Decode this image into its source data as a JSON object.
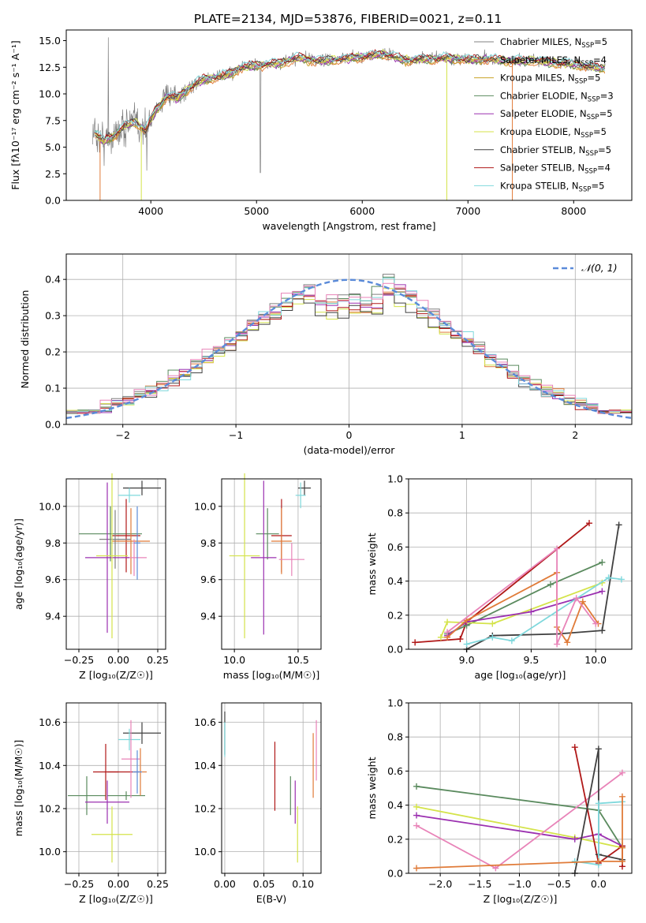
{
  "figure": {
    "title": "PLATE=2134, MJD=53876, FIBERID=0021, z=0.11"
  },
  "chart_data": [
    {
      "id": "spectrum",
      "type": "line",
      "xlabel": "wavelength [Angstrom, rest frame]",
      "ylabel": "Flux [fλ10⁻¹⁷ erg cm⁻² s⁻¹ A⁻¹]",
      "xlim": [
        3200,
        8550
      ],
      "ylim": [
        0,
        16
      ],
      "xticks": [
        "4000",
        "5000",
        "6000",
        "7000",
        "8000"
      ],
      "xtick_values": [
        4000,
        5000,
        6000,
        7000,
        8000
      ],
      "yticks": [
        "0.0",
        "2.5",
        "5.0",
        "7.5",
        "10.0",
        "12.5",
        "15.0"
      ],
      "ytick_values": [
        0,
        2.5,
        5,
        7.5,
        10,
        12.5,
        15
      ],
      "grid": false,
      "legend_position": "top-right",
      "legend": [
        {
          "label": "Chabrier MILES, N",
          "sub": "SSP",
          "suffix": "=5",
          "color": "#808080"
        },
        {
          "label": "Salpeter MILES, N",
          "sub": "SSP",
          "suffix": "=4",
          "color": "#e07b39"
        },
        {
          "label": "Kroupa MILES, N",
          "sub": "SSP",
          "suffix": "=5",
          "color": "#c9a227"
        },
        {
          "label": "Chabrier ELODIE, N",
          "sub": "SSP",
          "suffix": "=3",
          "color": "#5a8a5e"
        },
        {
          "label": "Salpeter ELODIE, N",
          "sub": "SSP",
          "suffix": "=5",
          "color": "#9b30b0"
        },
        {
          "label": "Kroupa ELODIE, N",
          "sub": "SSP",
          "suffix": "=5",
          "color": "#d4e34a"
        },
        {
          "label": "Chabrier STELIB, N",
          "sub": "SSP",
          "suffix": "=5",
          "color": "#404040"
        },
        {
          "label": "Salpeter STELIB, N",
          "sub": "SSP",
          "suffix": "=4",
          "color": "#b01818"
        },
        {
          "label": "Kroupa STELIB, N",
          "sub": "SSP",
          "suffix": "=5",
          "color": "#7fd8dc"
        }
      ],
      "data_envelope": {
        "x": [
          3450,
          3550,
          3650,
          3750,
          3850,
          3950,
          4050,
          4150,
          4250,
          4350,
          4500,
          4700,
          4850,
          5000,
          5200,
          5400,
          5600,
          5800,
          6000,
          6200,
          6400,
          6600,
          6800,
          7000,
          7200,
          7400,
          7600,
          7800,
          8000,
          8200,
          8300
        ],
        "y": [
          6.5,
          5.6,
          6.1,
          7.0,
          7.4,
          6.6,
          8.5,
          9.8,
          9.6,
          10.5,
          11.4,
          11.7,
          12.5,
          12.7,
          12.9,
          13.4,
          13.1,
          13.3,
          13.5,
          13.8,
          13.2,
          13.3,
          13.4,
          13.2,
          13.3,
          13.1,
          13.2,
          13.0,
          12.8,
          12.5,
          12.4
        ]
      }
    },
    {
      "id": "residuals",
      "type": "histogram",
      "xlabel": "(data-model)/error",
      "ylabel": "Normed distribution",
      "xlim": [
        -2.5,
        2.5
      ],
      "ylim": [
        0,
        0.47
      ],
      "xticks": [
        "−2",
        "−1",
        "0",
        "1",
        "2"
      ],
      "xtick_values": [
        -2,
        -1,
        0,
        1,
        2
      ],
      "yticks": [
        "0.0",
        "0.1",
        "0.2",
        "0.3",
        "0.4"
      ],
      "ytick_values": [
        0,
        0.1,
        0.2,
        0.3,
        0.4
      ],
      "grid": true,
      "legend_position": "top-right",
      "legend": [
        {
          "label": "𝒩(0, 1)",
          "color": "#5b8bd9",
          "style": "dashed"
        }
      ],
      "bin_width": 0.1,
      "reference_curve": "normal pdf, mean 0, sigma 1"
    },
    {
      "id": "age-vs-Z",
      "type": "errorbar",
      "xlabel": "Z [log₁₀(Z/Z☉)]",
      "ylabel": "age  [log₁₀(age/yr)]",
      "xlim": [
        -0.33,
        0.3
      ],
      "ylim": [
        9.22,
        10.15
      ],
      "xticks": [
        "−0.25",
        "0.00",
        "0.25"
      ],
      "xtick_values": [
        -0.25,
        0,
        0.25
      ],
      "yticks": [
        "9.4",
        "9.6",
        "9.8",
        "10.0"
      ],
      "ytick_values": [
        9.4,
        9.6,
        9.8,
        10.0
      ],
      "grid": true,
      "points": [
        {
          "x": 0.15,
          "y": 10.1,
          "xerr": 0.12,
          "yerr": 0.04,
          "color": "#404040"
        },
        {
          "x": 0.07,
          "y": 10.06,
          "xerr": 0.07,
          "yerr": 0.04,
          "color": "#7fd8dc"
        },
        {
          "x": -0.05,
          "y": 9.85,
          "xerr": 0.2,
          "yerr": 0.15,
          "color": "#5a8a5e"
        },
        {
          "x": 0.05,
          "y": 9.84,
          "xerr": 0.09,
          "yerr": 0.2,
          "color": "#b01818"
        },
        {
          "x": 0.08,
          "y": 9.81,
          "xerr": 0.12,
          "yerr": 0.18,
          "color": "#e07b39"
        },
        {
          "x": -0.02,
          "y": 9.82,
          "xerr": 0.1,
          "yerr": 0.16,
          "color": "#808080"
        },
        {
          "x": 0.1,
          "y": 9.72,
          "xerr": 0.08,
          "yerr": 0.1,
          "color": "#e883b8"
        },
        {
          "x": -0.07,
          "y": 9.72,
          "xerr": 0.14,
          "yerr": 0.41,
          "color": "#9b30b0"
        },
        {
          "x": -0.04,
          "y": 9.73,
          "xerr": 0.1,
          "yerr": 0.45,
          "color": "#d4e34a"
        },
        {
          "x": 0.12,
          "y": 9.8,
          "xerr": 0.02,
          "yerr": 0.2,
          "color": "#5b8bd9"
        }
      ]
    },
    {
      "id": "age-vs-mass",
      "type": "errorbar",
      "xlabel": "mass [log₁₀(M/M☉)]",
      "ylabel": "",
      "xlim": [
        9.9,
        10.68
      ],
      "ylim": [
        9.22,
        10.15
      ],
      "xticks": [
        "10.0",
        "10.5"
      ],
      "xtick_values": [
        10.0,
        10.5
      ],
      "yticks": [
        "9.4",
        "9.6",
        "9.8",
        "10.0"
      ],
      "ytick_values": [
        9.4,
        9.6,
        9.8,
        10.0
      ],
      "grid": true,
      "points": [
        {
          "x": 10.55,
          "y": 10.1,
          "xerr": 0.05,
          "yerr": 0.04,
          "color": "#404040"
        },
        {
          "x": 10.52,
          "y": 10.06,
          "xerr": 0.04,
          "yerr": 0.07,
          "color": "#7fd8dc"
        },
        {
          "x": 10.26,
          "y": 9.85,
          "xerr": 0.09,
          "yerr": 0.14,
          "color": "#5a8a5e"
        },
        {
          "x": 10.37,
          "y": 9.84,
          "xerr": 0.08,
          "yerr": 0.2,
          "color": "#b01818"
        },
        {
          "x": 10.37,
          "y": 9.81,
          "xerr": 0.08,
          "yerr": 0.18,
          "color": "#e07b39"
        },
        {
          "x": 10.45,
          "y": 9.71,
          "xerr": 0.1,
          "yerr": 0.09,
          "color": "#e883b8"
        },
        {
          "x": 10.23,
          "y": 9.72,
          "xerr": 0.1,
          "yerr": 0.42,
          "color": "#9b30b0"
        },
        {
          "x": 10.08,
          "y": 9.73,
          "xerr": 0.12,
          "yerr": 0.45,
          "color": "#d4e34a"
        }
      ]
    },
    {
      "id": "weight-vs-age",
      "type": "line",
      "xlabel": "age  [log₁₀(age/yr)]",
      "ylabel": "mass weight",
      "xlim": [
        8.55,
        10.28
      ],
      "ylim": [
        0,
        1
      ],
      "xticks": [
        "9.0",
        "9.5",
        "10.0"
      ],
      "xtick_values": [
        9.0,
        9.5,
        10.0
      ],
      "yticks": [
        "0.0",
        "0.2",
        "0.4",
        "0.6",
        "0.8",
        "1.0"
      ],
      "ytick_values": [
        0,
        0.2,
        0.4,
        0.6,
        0.8,
        1.0
      ],
      "grid": true,
      "series": [
        {
          "color": "#404040",
          "x": [
            9.0,
            9.2,
            9.7,
            10.05,
            10.18
          ],
          "y": [
            0.0,
            0.08,
            0.09,
            0.11,
            0.73
          ]
        },
        {
          "color": "#b01818",
          "x": [
            8.6,
            8.95,
            9.0,
            9.95
          ],
          "y": [
            0.04,
            0.06,
            0.16,
            0.74
          ]
        },
        {
          "color": "#5a8a5e",
          "x": [
            8.85,
            9.0,
            9.65,
            10.05
          ],
          "y": [
            0.09,
            0.14,
            0.38,
            0.51
          ]
        },
        {
          "color": "#d4e34a",
          "x": [
            8.8,
            8.85,
            9.2,
            10.05
          ],
          "y": [
            0.07,
            0.16,
            0.15,
            0.39
          ]
        },
        {
          "color": "#9b30b0",
          "x": [
            8.85,
            9.0,
            9.5,
            10.05
          ],
          "y": [
            0.08,
            0.16,
            0.22,
            0.34
          ]
        },
        {
          "color": "#7fd8dc",
          "x": [
            9.0,
            9.2,
            9.35,
            10.1,
            10.2
          ],
          "y": [
            0.03,
            0.07,
            0.05,
            0.42,
            0.41
          ]
        },
        {
          "color": "#e07b39",
          "x": [
            8.85,
            9.0,
            9.7,
            9.7,
            9.78,
            9.9,
            10.02
          ],
          "y": [
            0.07,
            0.17,
            0.45,
            0.13,
            0.04,
            0.28,
            0.15
          ]
        },
        {
          "color": "#e883b8",
          "x": [
            8.85,
            9.7,
            9.7,
            9.85,
            10.0
          ],
          "y": [
            0.1,
            0.59,
            0.03,
            0.3,
            0.15
          ]
        }
      ]
    },
    {
      "id": "mass-vs-Z",
      "type": "errorbar",
      "xlabel": "Z [log₁₀(Z/Z☉)]",
      "ylabel": "mass [log₁₀(M/M☉)]",
      "xlim": [
        -0.33,
        0.3
      ],
      "ylim": [
        9.9,
        10.69
      ],
      "xticks": [
        "−0.25",
        "0.00",
        "0.25"
      ],
      "xtick_values": [
        -0.25,
        0,
        0.25
      ],
      "yticks": [
        "10.0",
        "10.2",
        "10.4",
        "10.6"
      ],
      "ytick_values": [
        10.0,
        10.2,
        10.4,
        10.6
      ],
      "grid": true,
      "points": [
        {
          "x": 0.15,
          "y": 10.55,
          "xerr": 0.12,
          "yerr": 0.05,
          "color": "#404040"
        },
        {
          "x": 0.07,
          "y": 10.52,
          "xerr": 0.07,
          "yerr": 0.05,
          "color": "#7fd8dc"
        },
        {
          "x": -0.2,
          "y": 10.26,
          "xerr": 0.12,
          "yerr": 0.09,
          "color": "#5a8a5e"
        },
        {
          "x": 0.05,
          "y": 10.26,
          "xerr": 0.12,
          "yerr": 0.02,
          "color": "#5a8a5e"
        },
        {
          "x": -0.08,
          "y": 10.37,
          "xerr": 0.08,
          "yerr": 0.13,
          "color": "#b01818"
        },
        {
          "x": 0.03,
          "y": 10.37,
          "xerr": 0.1,
          "yerr": 0.0,
          "color": "#b01818"
        },
        {
          "x": 0.14,
          "y": 10.37,
          "xerr": 0.04,
          "yerr": 0.11,
          "color": "#e07b39"
        },
        {
          "x": 0.08,
          "y": 10.43,
          "xerr": 0.06,
          "yerr": 0.18,
          "color": "#e883b8"
        },
        {
          "x": -0.07,
          "y": 10.23,
          "xerr": 0.14,
          "yerr": 0.1,
          "color": "#9b30b0"
        },
        {
          "x": -0.04,
          "y": 10.08,
          "xerr": 0.13,
          "yerr": 0.13,
          "color": "#d4e34a"
        },
        {
          "x": 0.12,
          "y": 10.37,
          "xerr": 0.03,
          "yerr": 0.1,
          "color": "#5b8bd9"
        }
      ]
    },
    {
      "id": "mass-vs-ebv",
      "type": "errorbar",
      "xlabel": "E(B-V)",
      "ylabel": "",
      "xlim": [
        -0.004,
        0.123
      ],
      "ylim": [
        9.9,
        10.69
      ],
      "xticks": [
        "0.00",
        "0.05",
        "0.10"
      ],
      "xtick_values": [
        0,
        0.05,
        0.1
      ],
      "yticks": [
        "10.0",
        "10.2",
        "10.4",
        "10.6"
      ],
      "ytick_values": [
        10.0,
        10.2,
        10.4,
        10.6
      ],
      "grid": true,
      "points": [
        {
          "x": 0.0,
          "y": 10.55,
          "xerr": 0.0,
          "yerr": 0.1,
          "color": "#404040"
        },
        {
          "x": 0.0,
          "y": 10.52,
          "xerr": 0.0,
          "yerr": 0.08,
          "color": "#7fd8dc"
        },
        {
          "x": 0.064,
          "y": 10.35,
          "xerr": 0.0,
          "yerr": 0.16,
          "color": "#b01818"
        },
        {
          "x": 0.084,
          "y": 10.26,
          "xerr": 0.0,
          "yerr": 0.09,
          "color": "#5a8a5e"
        },
        {
          "x": 0.09,
          "y": 10.23,
          "xerr": 0.0,
          "yerr": 0.1,
          "color": "#9b30b0"
        },
        {
          "x": 0.093,
          "y": 10.08,
          "xerr": 0.0,
          "yerr": 0.13,
          "color": "#d4e34a"
        },
        {
          "x": 0.113,
          "y": 10.4,
          "xerr": 0.0,
          "yerr": 0.15,
          "color": "#e07b39"
        },
        {
          "x": 0.117,
          "y": 10.47,
          "xerr": 0.0,
          "yerr": 0.14,
          "color": "#e883b8"
        }
      ]
    },
    {
      "id": "weight-vs-Z",
      "type": "line",
      "xlabel": "Z [log₁₀(Z/Z☉)]",
      "ylabel": "mass weight",
      "xlim": [
        -2.4,
        0.42
      ],
      "ylim": [
        0,
        1
      ],
      "xticks": [
        "−2.0",
        "−1.5",
        "−1.0",
        "−0.5",
        "0.0"
      ],
      "xtick_values": [
        -2.0,
        -1.5,
        -1.0,
        -0.5,
        0.0
      ],
      "yticks": [
        "0.0",
        "0.2",
        "0.4",
        "0.6",
        "0.8",
        "1.0"
      ],
      "ytick_values": [
        0,
        0.2,
        0.4,
        0.6,
        0.8,
        1.0
      ],
      "grid": true,
      "series": [
        {
          "color": "#5a8a5e",
          "x": [
            -2.3,
            0.0,
            0.3
          ],
          "y": [
            0.51,
            0.37,
            0.15
          ]
        },
        {
          "color": "#d4e34a",
          "x": [
            -2.3,
            -0.3,
            0.3
          ],
          "y": [
            0.39,
            0.21,
            0.15
          ]
        },
        {
          "color": "#9b30b0",
          "x": [
            -2.3,
            -0.3,
            0.0,
            0.3
          ],
          "y": [
            0.34,
            0.2,
            0.23,
            0.16
          ]
        },
        {
          "color": "#e883b8",
          "x": [
            -2.3,
            -1.3,
            0.3
          ],
          "y": [
            0.28,
            0.03,
            0.59
          ]
        },
        {
          "color": "#b01818",
          "x": [
            -0.3,
            0.0,
            0.3,
            0.3
          ],
          "y": [
            0.74,
            0.06,
            0.16,
            0.04
          ]
        },
        {
          "color": "#404040",
          "x": [
            -0.3,
            0.0,
            0.0,
            0.3
          ],
          "y": [
            0.0,
            0.73,
            0.11,
            0.08
          ]
        },
        {
          "color": "#7fd8dc",
          "x": [
            -0.3,
            0.0,
            0.0,
            0.3
          ],
          "y": [
            0.07,
            0.05,
            0.41,
            0.42
          ]
        },
        {
          "color": "#e07b39",
          "x": [
            -2.3,
            0.0,
            0.3,
            0.3,
            0.3
          ],
          "y": [
            0.03,
            0.07,
            0.07,
            0.45,
            0.15
          ]
        }
      ]
    }
  ]
}
